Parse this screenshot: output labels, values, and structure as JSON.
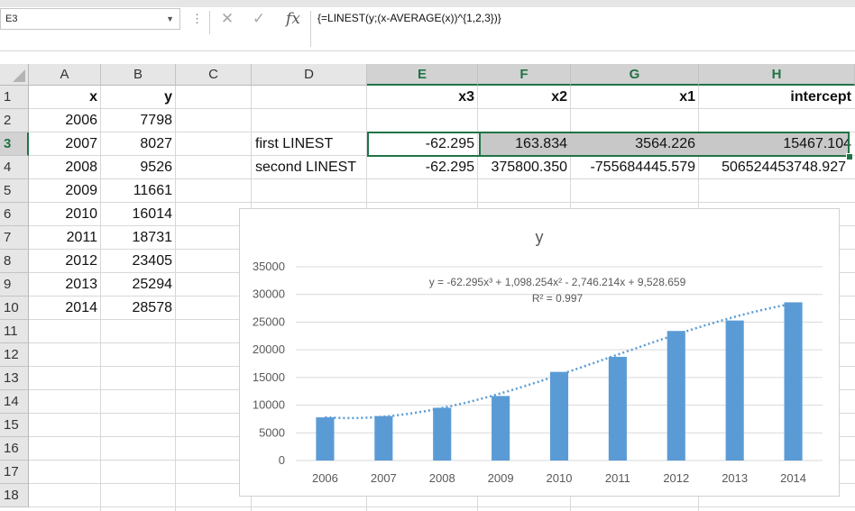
{
  "namebox": {
    "value": "E3"
  },
  "formula_bar": {
    "formula": "{=LINEST(y;(x-AVERAGE(x))^{1,2,3})}",
    "fx_label": "fx"
  },
  "columns": [
    "A",
    "B",
    "C",
    "D",
    "E",
    "F",
    "G",
    "H"
  ],
  "rows": [
    "1",
    "2",
    "3",
    "4",
    "5",
    "6",
    "7",
    "8",
    "9",
    "10",
    "11",
    "12",
    "13",
    "14",
    "15",
    "16",
    "17",
    "18"
  ],
  "cells": {
    "A1": "x",
    "B1": "y",
    "E1": "x3",
    "F1": "x2",
    "G1": "x1",
    "H1": "intercept",
    "A2": "2006",
    "B2": "7798",
    "A3": "2007",
    "B3": "8027",
    "A4": "2008",
    "B4": "9526",
    "A5": "2009",
    "B5": "11661",
    "A6": "2010",
    "B6": "16014",
    "A7": "2011",
    "B7": "18731",
    "A8": "2012",
    "B8": "23405",
    "A9": "2013",
    "B9": "25294",
    "A10": "2014",
    "B10": "28578",
    "D3": "first LINEST",
    "E3": "-62.295",
    "F3": "163.834",
    "G3": "3564.226",
    "H3": "15467.104",
    "D4": "second LINEST",
    "E4": "-62.295",
    "F4": "375800.350",
    "G4": "-755684445.579",
    "H4": "506524453748.927"
  },
  "colors": {
    "accent": "#217346",
    "bar": "#5b9bd5",
    "trend": "#5b9bd5",
    "axis_text": "#595959"
  },
  "chart_data": {
    "type": "bar",
    "title": "y",
    "categories": [
      "2006",
      "2007",
      "2008",
      "2009",
      "2010",
      "2011",
      "2012",
      "2013",
      "2014"
    ],
    "series": [
      {
        "values": [
          7798,
          8027,
          9526,
          11661,
          16014,
          18731,
          23405,
          25294,
          28578
        ]
      }
    ],
    "trendline": {
      "type": "polynomial-3",
      "equation": "y = -62.295x³ + 1,098.254x² - 2,746.214x + 9,528.659",
      "r2": "R² = 0.997",
      "coefficients": [
        -62.295,
        1098.254,
        -2746.214,
        9528.659
      ]
    },
    "ylim": [
      0,
      35000
    ],
    "yticks": [
      "0",
      "5000",
      "10000",
      "15000",
      "20000",
      "25000",
      "30000",
      "35000"
    ],
    "grid": true,
    "legend": "none"
  }
}
